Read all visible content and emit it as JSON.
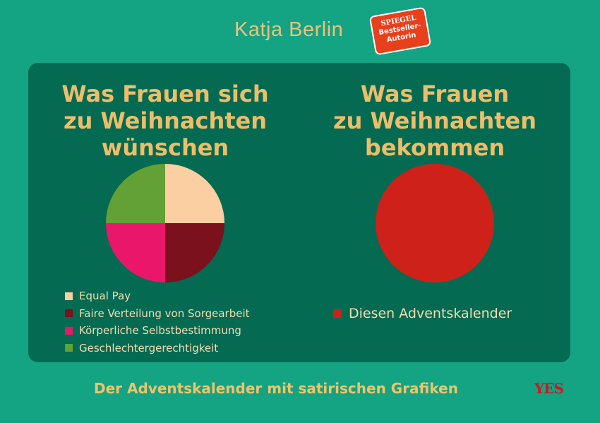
{
  "author": "Katja Berlin",
  "badge": {
    "line1": "SPIEGEL",
    "line2": "Bestseller-",
    "line3": "Autorin"
  },
  "tagline": "Der Adventskalender mit satirischen Grafiken",
  "publisher_logo": "YES",
  "colors": {
    "background": "#14a383",
    "panel": "#046a52",
    "title": "#edbe6a"
  },
  "chart_data": [
    {
      "type": "pie",
      "title": "Was Frauen sich zu Weihnachten wünschen",
      "title_lines": [
        "Was Frauen sich",
        "zu Weihnachten",
        "wünschen"
      ],
      "slices": [
        {
          "label": "Equal Pay",
          "value": 25,
          "color": "#fccfa2"
        },
        {
          "label": "Faire Verteilung von Sorgearbeit",
          "value": 25,
          "color": "#7a111c"
        },
        {
          "label": "Körperliche Selbstbestimmung",
          "value": 25,
          "color": "#ea166a"
        },
        {
          "label": "Geschlechtergerechtigkeit",
          "value": 25,
          "color": "#63a035"
        }
      ],
      "legend": "bottom"
    },
    {
      "type": "pie",
      "title": "Was Frauen zu Weihnachten bekommen",
      "title_lines": [
        "Was Frauen",
        "zu Weihnachten",
        "bekommen"
      ],
      "slices": [
        {
          "label": "Diesen Adventskalender",
          "value": 100,
          "color": "#cd2119"
        }
      ],
      "legend": "bottom"
    }
  ]
}
